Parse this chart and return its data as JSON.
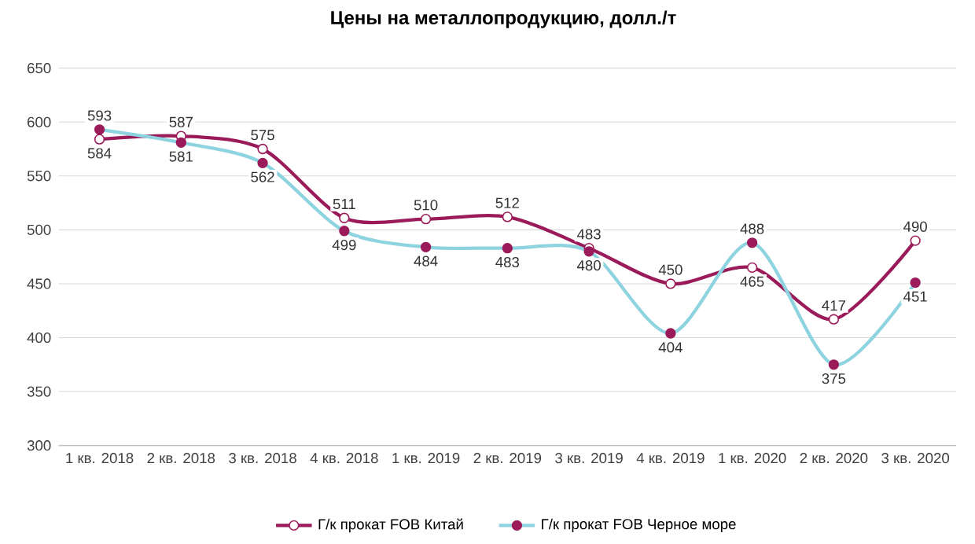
{
  "chart_data": {
    "type": "line",
    "title": "Цены на металлопродукцию, долл./т",
    "categories": [
      "1 кв. 2018",
      "2 кв. 2018",
      "3 кв. 2018",
      "4 кв. 2018",
      "1 кв. 2019",
      "2 кв. 2019",
      "3 кв. 2019",
      "4 кв. 2019",
      "1 кв. 2020",
      "2 кв. 2020",
      "3 кв. 2020"
    ],
    "series": [
      {
        "name": "Г/к прокат FOB Китай",
        "color": "#9b1b5a",
        "values": [
          584,
          587,
          575,
          511,
          510,
          512,
          483,
          450,
          465,
          417,
          490
        ]
      },
      {
        "name": "Г/к прокат FOB Черное море",
        "color": "#8ed3e0",
        "values": [
          593,
          581,
          562,
          499,
          484,
          483,
          480,
          404,
          488,
          375,
          451
        ]
      }
    ],
    "ylim": [
      300,
      650
    ],
    "yticks": [
      300,
      350,
      400,
      450,
      500,
      550,
      600,
      650
    ],
    "grid": "y",
    "legend": "bottom",
    "marker": "circle",
    "line_style": "solid",
    "data_labels": true
  }
}
